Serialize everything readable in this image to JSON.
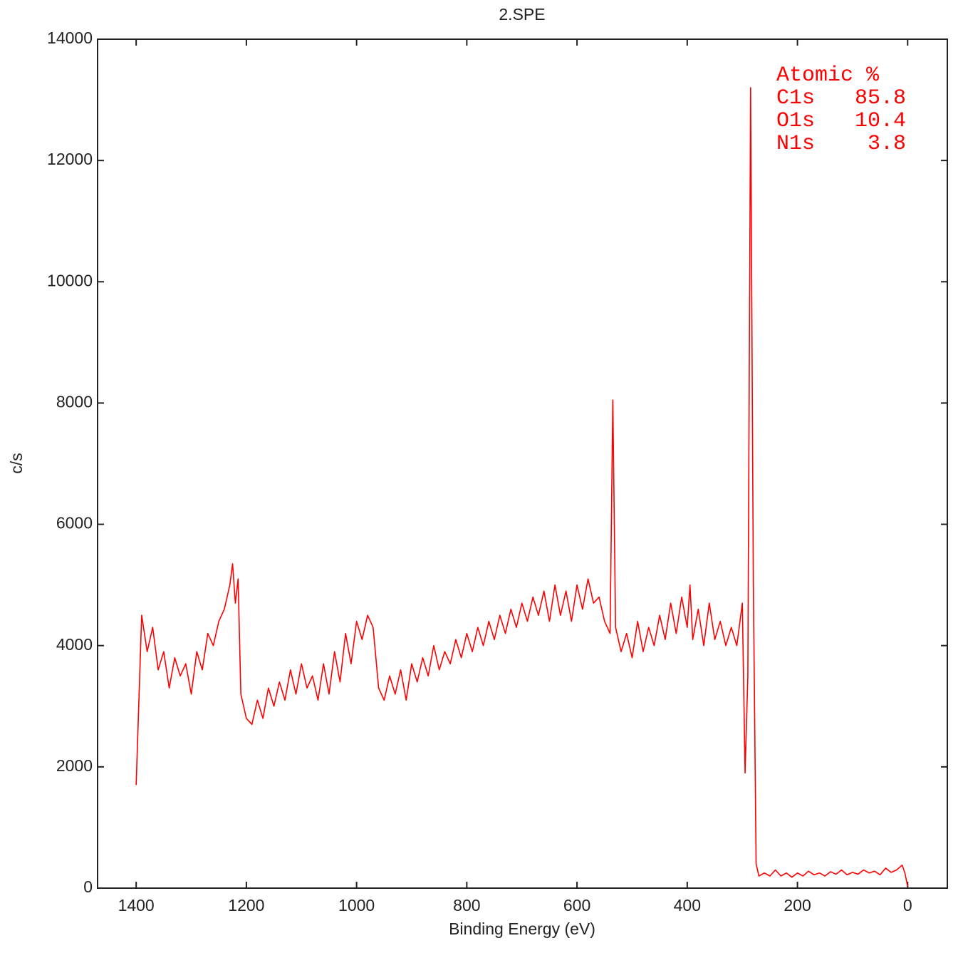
{
  "chart_data": {
    "type": "line",
    "title": "2.SPE",
    "x_label": "Binding Energy (eV)",
    "y_label": "c/s",
    "color": "#ff0000",
    "xlim": [
      1470,
      -72
    ],
    "ylim": [
      0,
      14000
    ],
    "xticks": [
      1400,
      1200,
      1000,
      800,
      600,
      400,
      200,
      0
    ],
    "yticks": [
      0,
      2000,
      4000,
      6000,
      8000,
      10000,
      12000,
      14000
    ],
    "grid": false,
    "x": [
      1400,
      1390,
      1380,
      1370,
      1360,
      1350,
      1340,
      1330,
      1320,
      1310,
      1300,
      1290,
      1280,
      1270,
      1260,
      1250,
      1240,
      1230,
      1225,
      1220,
      1215,
      1210,
      1200,
      1190,
      1180,
      1170,
      1160,
      1150,
      1140,
      1130,
      1120,
      1110,
      1100,
      1090,
      1080,
      1070,
      1060,
      1050,
      1040,
      1030,
      1020,
      1010,
      1000,
      990,
      980,
      970,
      960,
      950,
      940,
      930,
      920,
      910,
      900,
      890,
      880,
      870,
      860,
      850,
      840,
      830,
      820,
      810,
      800,
      790,
      780,
      770,
      760,
      750,
      740,
      730,
      720,
      710,
      700,
      690,
      680,
      670,
      660,
      650,
      640,
      630,
      620,
      610,
      600,
      590,
      580,
      570,
      560,
      550,
      540,
      535,
      530,
      520,
      510,
      500,
      490,
      480,
      470,
      460,
      450,
      440,
      430,
      420,
      410,
      400,
      395,
      390,
      380,
      370,
      360,
      350,
      340,
      330,
      320,
      310,
      300,
      295,
      290,
      285,
      280,
      275,
      270,
      260,
      250,
      240,
      230,
      220,
      210,
      200,
      190,
      180,
      170,
      160,
      150,
      140,
      130,
      120,
      110,
      100,
      90,
      80,
      70,
      60,
      50,
      40,
      30,
      20,
      10,
      5,
      0
    ],
    "values": [
      1700,
      4500,
      3900,
      4300,
      3600,
      3900,
      3300,
      3800,
      3500,
      3700,
      3200,
      3900,
      3600,
      4200,
      4000,
      4400,
      4600,
      5000,
      5350,
      4700,
      5100,
      3200,
      2800,
      2700,
      3100,
      2800,
      3300,
      3000,
      3400,
      3100,
      3600,
      3200,
      3700,
      3300,
      3500,
      3100,
      3700,
      3200,
      3900,
      3400,
      4200,
      3700,
      4400,
      4100,
      4500,
      4300,
      3300,
      3100,
      3500,
      3200,
      3600,
      3100,
      3700,
      3400,
      3800,
      3500,
      4000,
      3600,
      3900,
      3700,
      4100,
      3800,
      4200,
      3900,
      4300,
      4000,
      4400,
      4100,
      4500,
      4200,
      4600,
      4300,
      4700,
      4400,
      4800,
      4500,
      4900,
      4400,
      5000,
      4500,
      4900,
      4400,
      5000,
      4600,
      5100,
      4700,
      4800,
      4400,
      4200,
      8050,
      4300,
      3900,
      4200,
      3800,
      4400,
      3900,
      4300,
      4000,
      4500,
      4100,
      4700,
      4200,
      4800,
      4300,
      5000,
      4100,
      4600,
      4000,
      4700,
      4100,
      4400,
      4000,
      4300,
      4000,
      4700,
      1900,
      3500,
      13200,
      5000,
      400,
      200,
      250,
      200,
      300,
      200,
      250,
      180,
      250,
      200,
      280,
      220,
      250,
      200,
      270,
      230,
      300,
      220,
      260,
      230,
      300,
      250,
      280,
      220,
      330,
      260,
      300,
      380,
      250,
      30
    ],
    "annotation": {
      "title": "Atomic %",
      "rows": [
        {
          "label": "C1s",
          "value": 85.8
        },
        {
          "label": "O1s",
          "value": 10.4
        },
        {
          "label": "N1s",
          "value": 3.8
        }
      ]
    }
  }
}
